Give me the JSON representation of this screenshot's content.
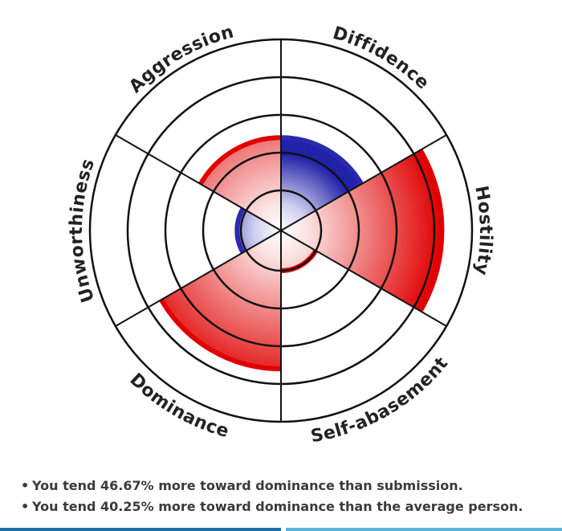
{
  "chart_data": {
    "type": "polar-area",
    "title": "",
    "rings": 5,
    "max": 5,
    "categories": [
      "Diffidence",
      "Hostility",
      "Self-abasement",
      "Dominance",
      "Unworthiness",
      "Aggression"
    ],
    "series": [
      {
        "values": [
          2.4,
          4.2,
          1.0,
          3.6,
          1.1,
          2.4
        ],
        "colors": [
          "#2a2ab0",
          "#e00000",
          "#e00000",
          "#e00000",
          "#2a2ab0",
          "#e00000"
        ]
      }
    ],
    "grid": true
  },
  "summary": [
    "You tend 46.67% more toward dominance than submission.",
    "You tend 40.25% more toward dominance than the average person."
  ],
  "bottom_bar_colors": [
    "#1f6fa8",
    "#ffffff",
    "#5ab3d6"
  ]
}
